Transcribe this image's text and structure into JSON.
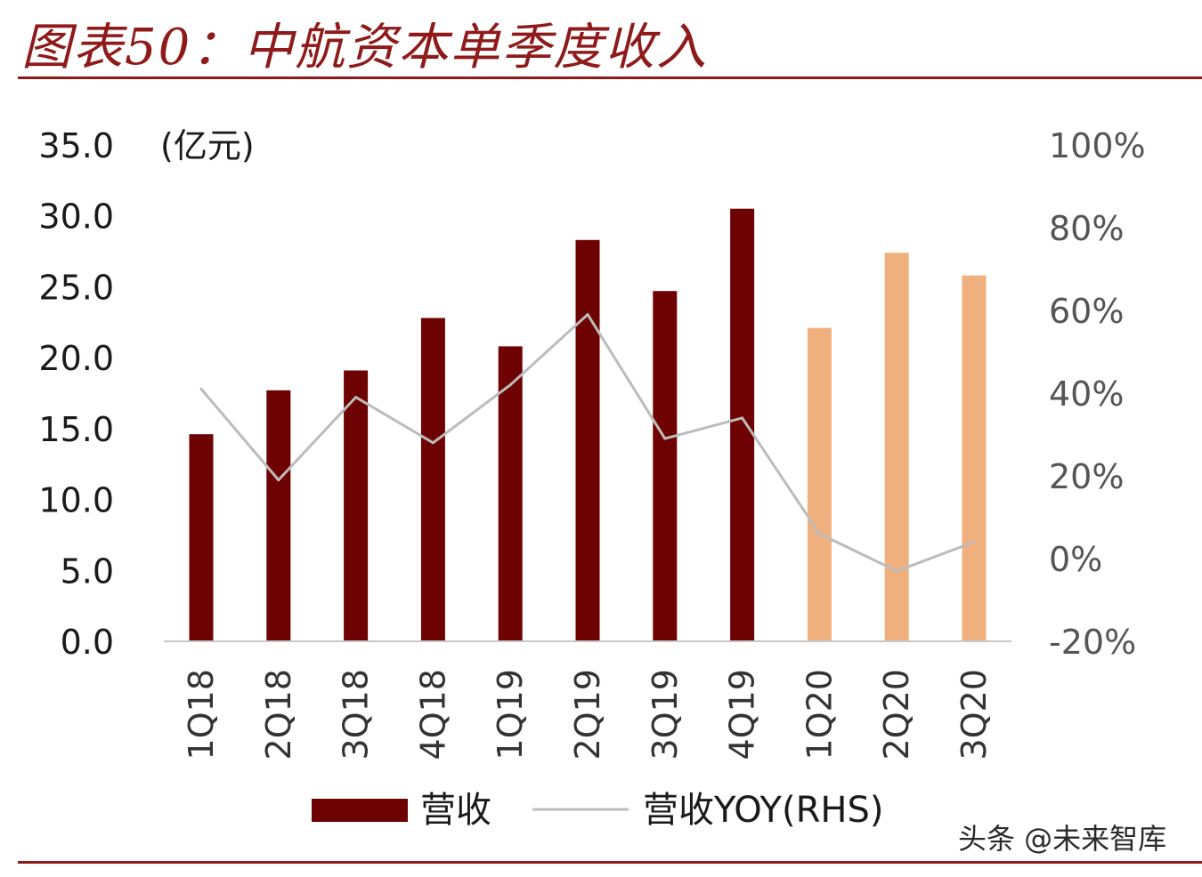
{
  "header": {
    "title": "图表50：中航资本单季度收入"
  },
  "watermark": "头条 @未来智库",
  "chart_data": {
    "type": "bar",
    "ylabel": "(亿元)",
    "categories": [
      "1Q18",
      "2Q18",
      "3Q18",
      "4Q18",
      "1Q19",
      "2Q19",
      "3Q19",
      "4Q19",
      "1Q20",
      "2Q20",
      "3Q20"
    ],
    "series": [
      {
        "name": "营收",
        "type": "bar",
        "axis": "left",
        "values": [
          14.6,
          17.7,
          19.1,
          22.8,
          20.8,
          28.3,
          24.7,
          30.5,
          22.1,
          27.4,
          25.8
        ]
      },
      {
        "name": "营收YOY(RHS)",
        "type": "line",
        "axis": "right",
        "values": [
          0.41,
          0.19,
          0.39,
          0.28,
          0.42,
          0.59,
          0.29,
          0.34,
          0.06,
          -0.03,
          0.04
        ]
      }
    ],
    "bar_colors": [
      "#6e0202",
      "#6e0202",
      "#6e0202",
      "#6e0202",
      "#6e0202",
      "#6e0202",
      "#6e0202",
      "#6e0202",
      "#f0b07e",
      "#f0b07e",
      "#f0b07e"
    ],
    "line_color": "#bcbcbc",
    "ylim": [
      0,
      35
    ],
    "yticks": [
      "0.0",
      "5.0",
      "10.0",
      "15.0",
      "20.0",
      "25.0",
      "30.0",
      "35.0"
    ],
    "y2lim": [
      -0.2,
      1.0
    ],
    "y2ticks": [
      "-20%",
      "0%",
      "20%",
      "40%",
      "60%",
      "80%",
      "100%"
    ],
    "legend": {
      "position": "bottom",
      "items": [
        "营收",
        "营收YOY(RHS)"
      ]
    },
    "grid": false
  }
}
